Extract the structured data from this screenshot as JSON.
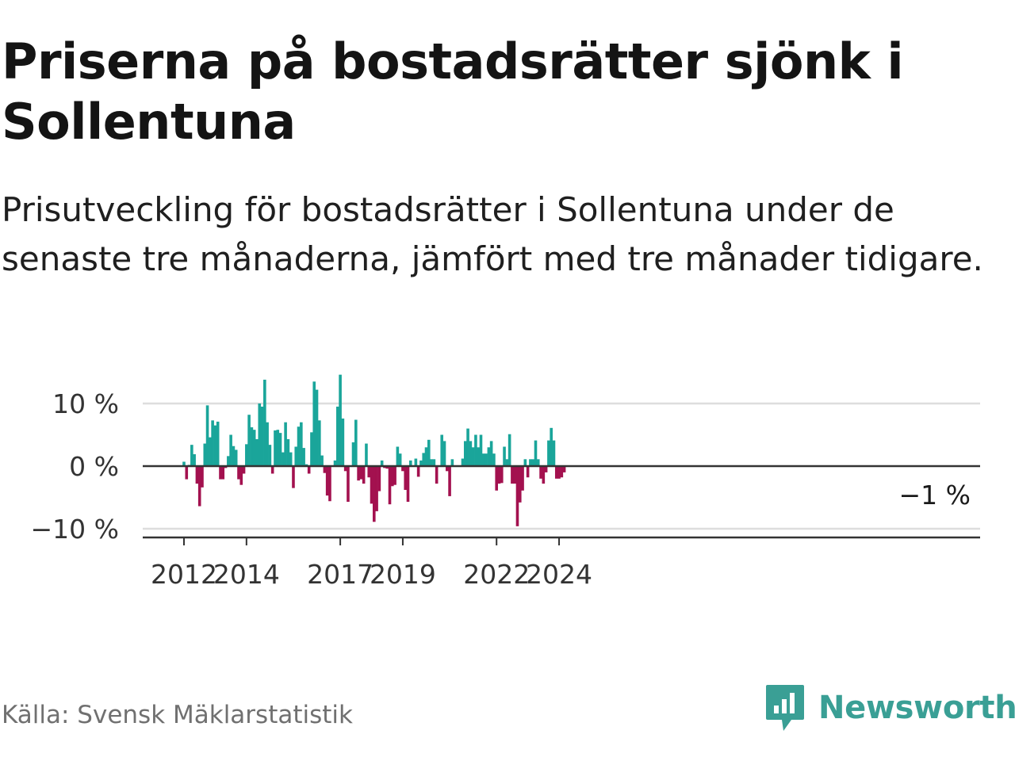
{
  "title": "Priserna på bostadsrätter sjönk i Sollentuna",
  "subtitle": "Prisutveckling för bostadsrätter i Sollentuna under de senaste tre månaderna, jämfört med tre månader tidigare.",
  "source": "Källa: Svensk Mäklarstatistik",
  "brand": "Newsworthy",
  "colors": {
    "positive": "#1aa59a",
    "negative": "#a3114f",
    "brand": "#3a9f95",
    "grid": "#dddddd",
    "axis": "#333333"
  },
  "chart_data": {
    "type": "bar",
    "title": "Priserna på bostadsrätter sjönk i Sollentuna",
    "xlabel": "",
    "ylabel": "",
    "unit": "%",
    "ylim": [
      -11,
      14
    ],
    "y_ticks": [
      10,
      0,
      -10
    ],
    "y_tick_labels": [
      "10 %",
      "0 %",
      "−10 %"
    ],
    "x_start_month": "2012-01",
    "x_ticks": [
      "2012-01",
      "2014-01",
      "2017-01",
      "2019-01",
      "2022-01",
      "2024-01"
    ],
    "x_tick_labels": [
      "2012",
      "2014",
      "2017",
      "2019",
      "2022",
      "2024"
    ],
    "end_label": "−1 %",
    "values": [
      0.7,
      -2.1,
      0.2,
      3.4,
      1.9,
      -2.8,
      -6.4,
      -3.4,
      3.6,
      9.7,
      4.6,
      7.3,
      6.5,
      7.1,
      -2.1,
      -2.1,
      -0.3,
      1.6,
      5.0,
      3.2,
      2.6,
      -2.1,
      -3.0,
      -1.2,
      3.5,
      8.2,
      6.2,
      5.8,
      4.3,
      10.0,
      9.5,
      13.8,
      7.0,
      3.4,
      -1.2,
      5.7,
      5.8,
      5.3,
      2.2,
      7.0,
      4.3,
      2.2,
      -3.5,
      3.1,
      6.3,
      7.0,
      2.9,
      0.3,
      -1.2,
      5.4,
      13.5,
      12.2,
      7.3,
      1.7,
      -1.1,
      -4.7,
      -5.6,
      0.0,
      0.9,
      9.5,
      14.6,
      7.6,
      -0.8,
      -5.7,
      0.0,
      3.8,
      7.4,
      -2.3,
      -2.1,
      -2.8,
      3.6,
      -1.8,
      -6.0,
      -8.9,
      -7.2,
      -4.0,
      0.9,
      -0.3,
      -0.4,
      -6.1,
      -3.2,
      -3.0,
      3.1,
      2.0,
      -0.8,
      -3.8,
      -5.7,
      0.9,
      0.0,
      1.2,
      -1.7,
      0.9,
      2.1,
      3.0,
      4.2,
      1.1,
      1.1,
      -2.8,
      0.0,
      5.0,
      4.0,
      -0.8,
      -4.8,
      1.1,
      0.0,
      0.0,
      0.0,
      1.2,
      4.0,
      6.0,
      4.0,
      3.0,
      5.0,
      3.0,
      5.0,
      2.0,
      2.0,
      3.0,
      4.0,
      2.0,
      -3.9,
      -2.8,
      -2.7,
      3.1,
      1.1,
      5.1,
      -2.8,
      -2.8,
      -9.6,
      -5.8,
      -3.9,
      1.1,
      -1.8,
      1.1,
      1.1,
      4.1,
      1.1,
      -2.0,
      -2.8,
      -1.0,
      4.1,
      6.1,
      4.1,
      -2.0,
      -2.0,
      -1.8,
      -1.0
    ]
  }
}
